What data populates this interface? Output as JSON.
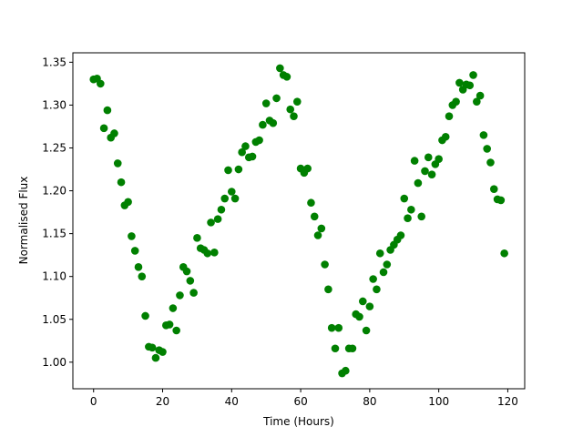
{
  "chart_data": {
    "type": "scatter",
    "xlabel": "Time (Hours)",
    "ylabel": "Normalised Flux",
    "color": "#008000",
    "x": [
      0,
      1,
      2,
      3,
      4,
      5,
      6,
      7,
      8,
      9,
      10,
      11,
      12,
      13,
      14,
      15,
      16,
      17,
      18,
      19,
      20,
      21,
      22,
      23,
      24,
      25,
      26,
      27,
      28,
      29,
      30,
      31,
      32,
      33,
      34,
      35,
      36,
      37,
      38,
      39,
      40,
      41,
      42,
      43,
      44,
      45,
      46,
      47,
      48,
      49,
      50,
      51,
      52,
      53,
      54,
      55,
      56,
      57,
      58,
      59,
      60,
      61,
      62,
      63,
      64,
      65,
      66,
      67,
      68,
      69,
      70,
      71,
      72,
      73,
      74,
      75,
      76,
      77,
      78,
      79,
      80,
      81,
      82,
      83,
      84,
      85,
      86,
      87,
      88,
      89,
      90,
      91,
      92,
      93,
      94,
      95,
      96,
      97,
      98,
      99,
      100,
      101,
      102,
      103,
      104,
      105,
      106,
      107,
      108,
      109,
      110,
      111,
      112,
      113,
      114,
      115,
      116,
      117,
      118,
      119
    ],
    "values": [
      1.33,
      1.331,
      1.325,
      1.273,
      1.294,
      1.262,
      1.267,
      1.232,
      1.21,
      1.183,
      1.187,
      1.147,
      1.13,
      1.111,
      1.1,
      1.054,
      1.018,
      1.017,
      1.005,
      1.014,
      1.012,
      1.043,
      1.044,
      1.063,
      1.037,
      1.078,
      1.111,
      1.106,
      1.095,
      1.081,
      1.145,
      1.133,
      1.131,
      1.127,
      1.163,
      1.128,
      1.167,
      1.178,
      1.191,
      1.224,
      1.199,
      1.191,
      1.225,
      1.245,
      1.252,
      1.239,
      1.24,
      1.257,
      1.259,
      1.277,
      1.302,
      1.282,
      1.279,
      1.308,
      1.343,
      1.335,
      1.333,
      1.295,
      1.287,
      1.304,
      1.226,
      1.221,
      1.226,
      1.186,
      1.17,
      1.148,
      1.156,
      1.114,
      1.085,
      1.04,
      1.016,
      1.04,
      0.987,
      0.99,
      1.016,
      1.016,
      1.056,
      1.053,
      1.071,
      1.037,
      1.065,
      1.097,
      1.085,
      1.127,
      1.105,
      1.114,
      1.131,
      1.137,
      1.143,
      1.148,
      1.191,
      1.168,
      1.178,
      1.235,
      1.209,
      1.17,
      1.223,
      1.239,
      1.219,
      1.231,
      1.237,
      1.259,
      1.263,
      1.287,
      1.3,
      1.304,
      1.326,
      1.318,
      1.324,
      1.323,
      1.335,
      1.304,
      1.311,
      1.265,
      1.249,
      1.233,
      1.202,
      1.19,
      1.189,
      1.127
    ],
    "xlim": [
      -6,
      124.9
    ],
    "ylim": [
      0.969,
      1.361
    ],
    "xticks": [
      0,
      20,
      40,
      60,
      80,
      100,
      120
    ],
    "yticks": [
      {
        "value": 1.0,
        "label": "1.00"
      },
      {
        "value": 1.05,
        "label": "1.05"
      },
      {
        "value": 1.1,
        "label": "1.10"
      },
      {
        "value": 1.15,
        "label": "1.15"
      },
      {
        "value": 1.2,
        "label": "1.20"
      },
      {
        "value": 1.25,
        "label": "1.25"
      },
      {
        "value": 1.3,
        "label": "1.30"
      },
      {
        "value": 1.35,
        "label": "1.35"
      }
    ]
  }
}
